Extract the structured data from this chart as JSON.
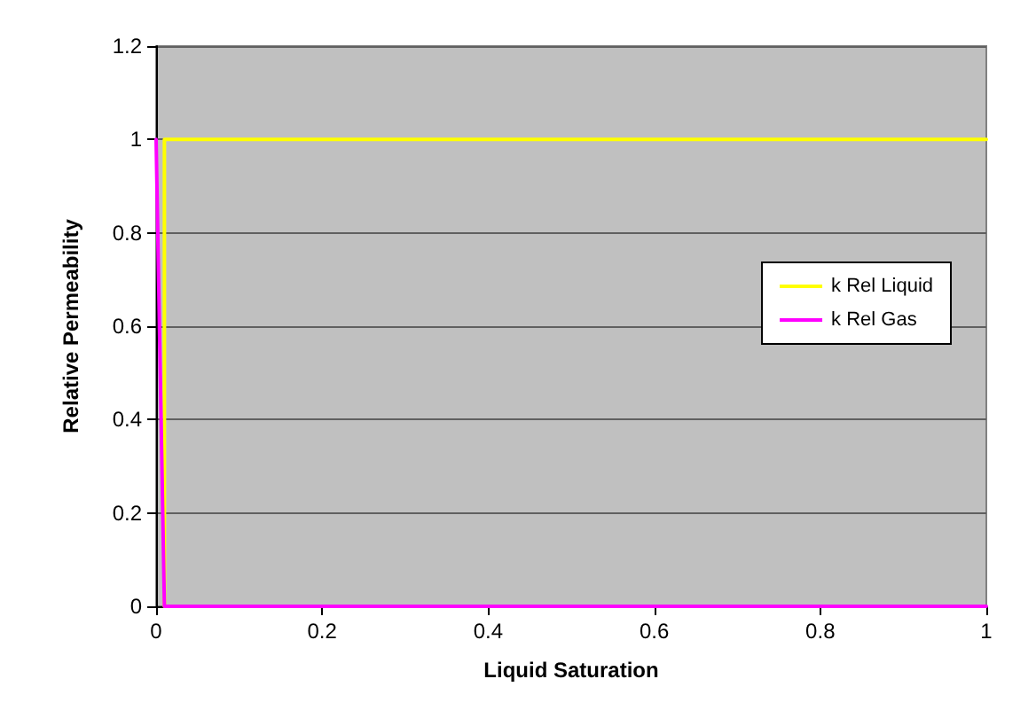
{
  "chart_data": {
    "type": "line",
    "xlabel": "Liquid Saturation",
    "ylabel": "Relative Permeability",
    "series": [
      {
        "name": "k Rel Liquid",
        "color": "#ffff00",
        "x": [
          0.01,
          0.01,
          1
        ],
        "values": [
          0,
          1,
          1
        ]
      },
      {
        "name": "k Rel Gas",
        "color": "#ff00ff",
        "x": [
          0,
          0.01,
          1
        ],
        "values": [
          1,
          0,
          0
        ]
      }
    ],
    "xlim": [
      0,
      1
    ],
    "xticks": [
      0,
      0.2,
      0.4,
      0.6,
      0.8,
      1
    ],
    "ylim": [
      0,
      1.2
    ],
    "yticks": [
      0,
      0.2,
      0.4,
      0.6,
      0.8,
      1,
      1.2
    ],
    "grid": "y",
    "legend": "right",
    "marker": "none",
    "line_style": "solid"
  }
}
